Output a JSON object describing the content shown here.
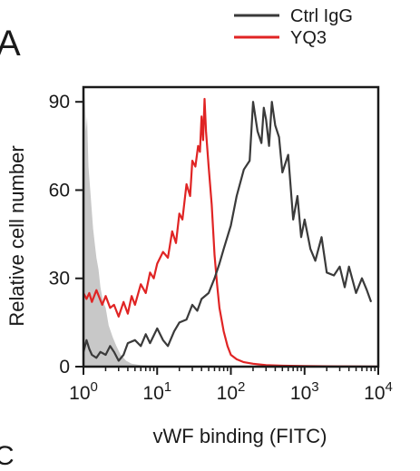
{
  "panel_label": "A",
  "panel_label_next": "C",
  "chart_data": {
    "type": "line",
    "title": "",
    "xlabel": "vWF binding (FITC)",
    "ylabel": "Relative cell number",
    "x_scale": "log",
    "xlim": [
      1,
      10000
    ],
    "ylim": [
      0,
      95
    ],
    "x_ticks": [
      1,
      10,
      100,
      1000,
      10000
    ],
    "x_tick_labels": [
      {
        "base": "10",
        "exp": "0"
      },
      {
        "base": "10",
        "exp": "1"
      },
      {
        "base": "10",
        "exp": "2"
      },
      {
        "base": "10",
        "exp": "3"
      },
      {
        "base": "10",
        "exp": "4"
      }
    ],
    "y_ticks": [
      0,
      30,
      60,
      90
    ],
    "y_tick_labels": [
      "0",
      "30",
      "60",
      "90"
    ],
    "grid": false,
    "legend_position": "top-right",
    "series": [
      {
        "name": "",
        "kind": "filled-area",
        "color": "#c8c8c8",
        "x": [
          1,
          1.04,
          1.08,
          1.12,
          1.17,
          1.22,
          1.28,
          1.35,
          1.42,
          1.5,
          1.6,
          1.7,
          1.85,
          2.0,
          2.2,
          2.5,
          2.8,
          3.2,
          3.8,
          4.5,
          6,
          10
        ],
        "y": [
          0,
          93,
          80,
          85,
          68,
          62,
          55,
          47,
          42,
          37,
          33,
          27,
          22,
          20,
          14,
          10,
          7,
          4,
          2,
          1,
          0.5,
          0
        ]
      },
      {
        "name": "YQ3",
        "kind": "line",
        "color": "#e02424",
        "x": [
          1,
          1.1,
          1.2,
          1.3,
          1.5,
          1.8,
          2.0,
          2.3,
          2.6,
          3.0,
          3.5,
          4.0,
          4.5,
          5.0,
          6,
          7,
          8,
          9,
          10,
          12,
          14,
          16,
          18,
          20,
          22,
          25,
          28,
          30,
          33,
          36,
          38,
          40,
          42,
          44,
          46,
          50,
          55,
          60,
          65,
          70,
          80,
          90,
          100,
          120,
          150,
          200,
          300,
          500,
          1000,
          3000,
          10000
        ],
        "y": [
          25,
          23,
          25,
          22,
          26,
          21,
          24,
          20,
          21,
          17,
          22,
          18,
          24,
          21,
          28,
          25,
          32,
          30,
          35,
          39,
          37,
          46,
          42,
          52,
          50,
          62,
          58,
          70,
          68,
          75,
          73,
          85,
          77,
          91,
          80,
          68,
          55,
          38,
          28,
          20,
          12,
          7,
          4,
          2.5,
          1.5,
          1,
          0.5,
          0.3,
          0.2,
          0.1,
          0
        ]
      },
      {
        "name": "Ctrl IgG",
        "kind": "line",
        "color": "#3a3a3a",
        "x": [
          1,
          1.1,
          1.2,
          1.3,
          1.5,
          1.7,
          2.0,
          2.3,
          2.6,
          3.0,
          3.5,
          4.0,
          5.0,
          6,
          7,
          8,
          10,
          12,
          14,
          17,
          20,
          25,
          30,
          35,
          40,
          50,
          60,
          70,
          80,
          100,
          120,
          150,
          180,
          200,
          230,
          260,
          280,
          300,
          330,
          360,
          400,
          450,
          500,
          600,
          700,
          800,
          900,
          1000,
          1200,
          1400,
          1700,
          2000,
          2500,
          3000,
          3500,
          4000,
          5000,
          6000,
          7000,
          8000
        ],
        "y": [
          5,
          9,
          6,
          4,
          3,
          5,
          4,
          7,
          5,
          2,
          4,
          8,
          9,
          7,
          11,
          8,
          13,
          9,
          7,
          12,
          15,
          16,
          21,
          19,
          23,
          25,
          30,
          35,
          40,
          48,
          58,
          67,
          70,
          90,
          80,
          76,
          88,
          84,
          75,
          90,
          82,
          78,
          66,
          72,
          50,
          58,
          44,
          50,
          40,
          36,
          44,
          32,
          31,
          34,
          27,
          34,
          25,
          30,
          26,
          22
        ]
      }
    ]
  }
}
